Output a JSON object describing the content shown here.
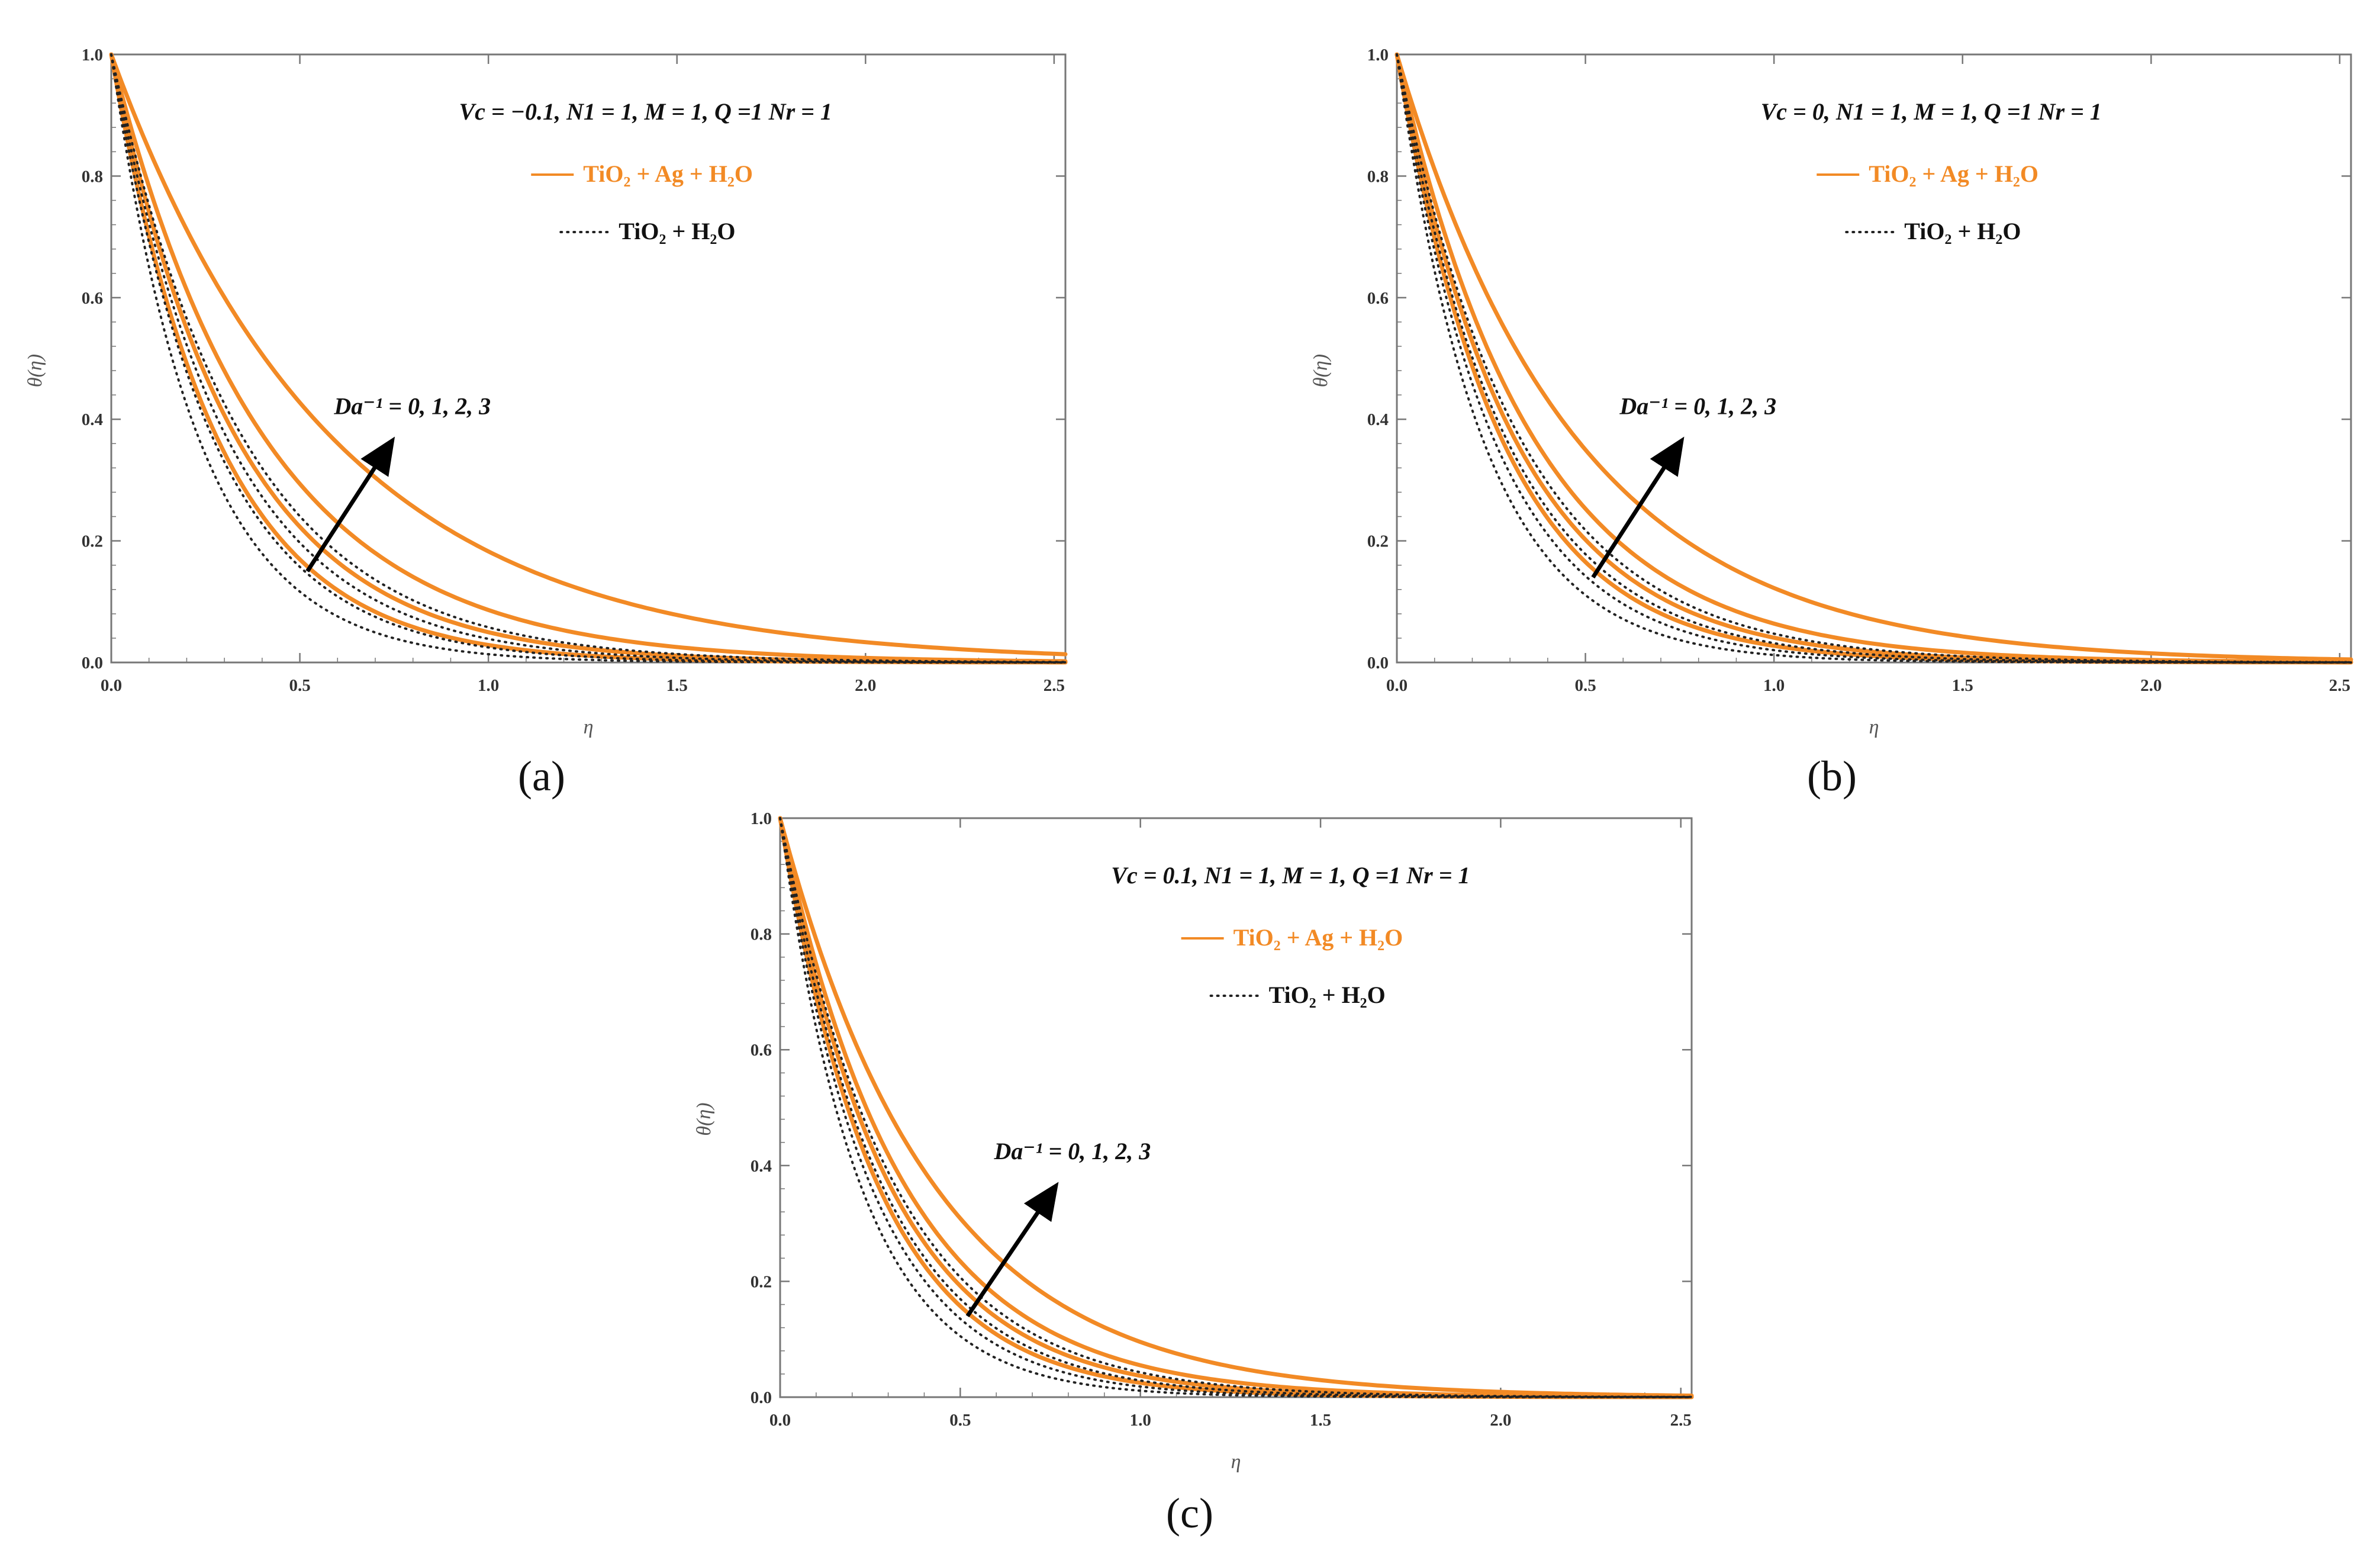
{
  "figure": {
    "panel_captions": [
      "(a)",
      "(b)",
      "(c)"
    ]
  },
  "colors": {
    "hybrid": "#f28a25",
    "mono": "#222222",
    "arrow": "#000000",
    "axis": "#777777"
  },
  "chart_data": [
    {
      "type": "line",
      "panel": "a",
      "caption": "(a)",
      "title": "",
      "xlabel": "η",
      "ylabel": "θ(η)",
      "xlim": [
        0,
        2.53
      ],
      "ylim": [
        0,
        1.0
      ],
      "xticks": [
        "0.0",
        "0.5",
        "1.0",
        "1.5",
        "2.0",
        "2.5"
      ],
      "yticks": [
        "0.0",
        "0.2",
        "0.4",
        "0.6",
        "0.8",
        "1.0"
      ],
      "params_label": "Vc = −0.1, N1 = 1, M = 1, Q =1 Nr = 1",
      "legend": [
        "TiO₂ + Ag + H₂O",
        "TiO₂ + H₂O"
      ],
      "annotation": "Da⁻¹ =  0, 1, 2, 3",
      "arrow": {
        "from": [
          0.52,
          0.15
        ],
        "to": [
          0.74,
          0.36
        ]
      },
      "series": [
        {
          "name": "TiO₂ + Ag + H₂O",
          "Da_inv": 0,
          "style": "solid",
          "decay": 3.55
        },
        {
          "name": "TiO₂ + Ag + H₂O",
          "Da_inv": 1,
          "style": "solid",
          "decay": 3.0
        },
        {
          "name": "TiO₂ + Ag + H₂O",
          "Da_inv": 2,
          "style": "solid",
          "decay": 2.45
        },
        {
          "name": "TiO₂ + Ag + H₂O",
          "Da_inv": 3,
          "style": "solid",
          "decay": 1.7
        },
        {
          "name": "TiO₂ + H₂O",
          "Da_inv": 0,
          "style": "dotted",
          "decay": 4.3
        },
        {
          "name": "TiO₂ + H₂O",
          "Da_inv": 1,
          "style": "dotted",
          "decay": 3.7
        },
        {
          "name": "TiO₂ + H₂O",
          "Da_inv": 2,
          "style": "dotted",
          "decay": 3.25
        },
        {
          "name": "TiO₂ + H₂O",
          "Da_inv": 3,
          "style": "dotted",
          "decay": 2.85
        }
      ]
    },
    {
      "type": "line",
      "panel": "b",
      "caption": "(b)",
      "title": "",
      "xlabel": "η",
      "ylabel": "θ(η)",
      "xlim": [
        0,
        2.53
      ],
      "ylim": [
        0,
        1.0
      ],
      "xticks": [
        "0.0",
        "0.5",
        "1.0",
        "1.5",
        "2.0",
        "2.5"
      ],
      "yticks": [
        "0.0",
        "0.2",
        "0.4",
        "0.6",
        "0.8",
        "1.0"
      ],
      "params_label": "Vc = 0, N1 = 1, M = 1, Q =1 Nr = 1",
      "legend": [
        "TiO₂ + Ag + H₂O",
        "TiO₂ + H₂O"
      ],
      "annotation": "Da⁻¹ =  0, 1, 2, 3",
      "arrow": {
        "from": [
          0.52,
          0.14
        ],
        "to": [
          0.75,
          0.36
        ]
      },
      "series": [
        {
          "name": "TiO₂ + Ag + H₂O",
          "Da_inv": 0,
          "style": "solid",
          "decay": 3.6
        },
        {
          "name": "TiO₂ + Ag + H₂O",
          "Da_inv": 1,
          "style": "solid",
          "decay": 3.2
        },
        {
          "name": "TiO₂ + Ag + H₂O",
          "Da_inv": 2,
          "style": "solid",
          "decay": 2.75
        },
        {
          "name": "TiO₂ + Ag + H₂O",
          "Da_inv": 3,
          "style": "solid",
          "decay": 2.1
        },
        {
          "name": "TiO₂ + H₂O",
          "Da_inv": 0,
          "style": "dotted",
          "decay": 4.4
        },
        {
          "name": "TiO₂ + H₂O",
          "Da_inv": 1,
          "style": "dotted",
          "decay": 3.9
        },
        {
          "name": "TiO₂ + H₂O",
          "Da_inv": 2,
          "style": "dotted",
          "decay": 3.45
        },
        {
          "name": "TiO₂ + H₂O",
          "Da_inv": 3,
          "style": "dotted",
          "decay": 3.05
        }
      ]
    },
    {
      "type": "line",
      "panel": "c",
      "caption": "(c)",
      "title": "",
      "xlabel": "η",
      "ylabel": "θ(η)",
      "xlim": [
        0,
        2.53
      ],
      "ylim": [
        0,
        1.0
      ],
      "xticks": [
        "0.0",
        "0.5",
        "1.0",
        "1.5",
        "2.0",
        "2.5"
      ],
      "yticks": [
        "0.0",
        "0.2",
        "0.4",
        "0.6",
        "0.8",
        "1.0"
      ],
      "params_label": "Vc = 0.1, N1 = 1, M = 1, Q =1 Nr = 1",
      "legend": [
        "TiO₂ + Ag + H₂O",
        "TiO₂ + H₂O"
      ],
      "annotation": "Da⁻¹ =  0, 1, 2, 3",
      "arrow": {
        "from": [
          0.52,
          0.14
        ],
        "to": [
          0.76,
          0.36
        ]
      },
      "series": [
        {
          "name": "TiO₂ + Ag + H₂O",
          "Da_inv": 0,
          "style": "solid",
          "decay": 3.7
        },
        {
          "name": "TiO₂ + Ag + H₂O",
          "Da_inv": 1,
          "style": "solid",
          "decay": 3.3
        },
        {
          "name": "TiO₂ + Ag + H₂O",
          "Da_inv": 2,
          "style": "solid",
          "decay": 2.9
        },
        {
          "name": "TiO₂ + Ag + H₂O",
          "Da_inv": 3,
          "style": "solid",
          "decay": 2.35
        },
        {
          "name": "TiO₂ + H₂O",
          "Da_inv": 0,
          "style": "dotted",
          "decay": 4.5
        },
        {
          "name": "TiO₂ + H₂O",
          "Da_inv": 1,
          "style": "dotted",
          "decay": 4.0
        },
        {
          "name": "TiO₂ + H₂O",
          "Da_inv": 2,
          "style": "dotted",
          "decay": 3.55
        },
        {
          "name": "TiO₂ + H₂O",
          "Da_inv": 3,
          "style": "dotted",
          "decay": 3.15
        }
      ]
    }
  ]
}
